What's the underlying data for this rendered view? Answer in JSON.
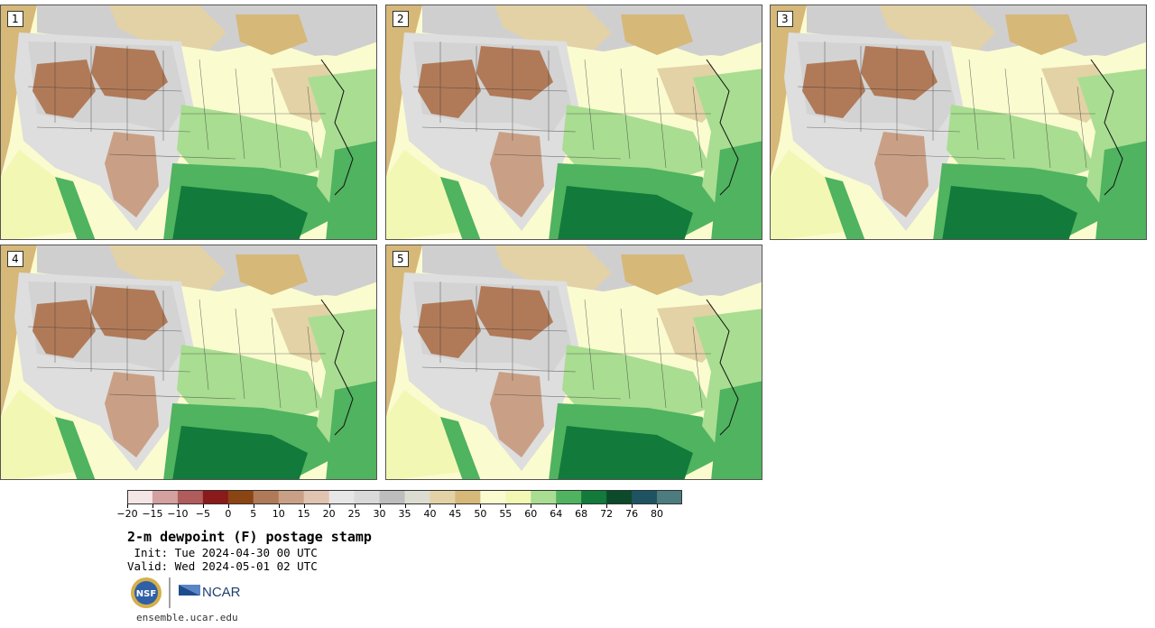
{
  "stamps": [
    {
      "label": "1"
    },
    {
      "label": "2"
    },
    {
      "label": "3"
    },
    {
      "label": "4"
    },
    {
      "label": "5"
    }
  ],
  "colorbar": {
    "colors": [
      "#f5e6e6",
      "#d4a0a0",
      "#b05c5c",
      "#8b1a1a",
      "#8b4513",
      "#b07a58",
      "#c9a086",
      "#e0c3b0",
      "#e6e6e6",
      "#d9d9d9",
      "#bdbdbd",
      "#dcdcd0",
      "#e2d2a6",
      "#d6b878",
      "#fbfbd0",
      "#f3f7b4",
      "#a9dd92",
      "#4fb35f",
      "#127a3a",
      "#0b4a2a",
      "#1e5462",
      "#4d7c7e"
    ],
    "tick_labels": [
      "−20",
      "−15",
      "−10",
      "−5",
      "0",
      "5",
      "10",
      "15",
      "20",
      "25",
      "30",
      "35",
      "40",
      "45",
      "50",
      "55",
      "60",
      "64",
      "68",
      "72",
      "76",
      "80"
    ]
  },
  "title": "2-m dewpoint (F) postage stamp",
  "init": " Init: Tue 2024-04-30 00 UTC",
  "valid": "Valid: Wed 2024-05-01 02 UTC",
  "logos": {
    "left": "NSF",
    "right": "NCAR"
  },
  "url": "ensemble.ucar.edu"
}
